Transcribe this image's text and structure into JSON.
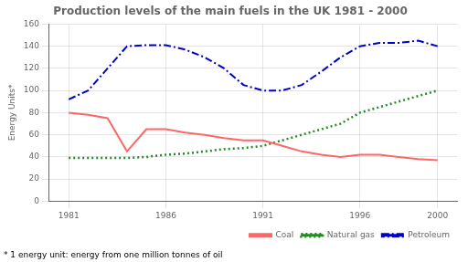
{
  "chart_data": {
    "type": "line",
    "title": "Production levels of the main fuels in the UK 1981 - 2000",
    "y_label": "Energy Units*",
    "annotations": [
      "* 1 energy unit: energy from one million tonnes of oil"
    ],
    "x": [
      1981,
      1982,
      1983,
      1984,
      1985,
      1986,
      1987,
      1988,
      1989,
      1990,
      1991,
      1992,
      1993,
      1994,
      1995,
      1996,
      1997,
      1998,
      1999,
      2000
    ],
    "series": [
      {
        "name": "Coal",
        "color": "#FF6666",
        "line_style": "solid",
        "values": [
          80,
          78,
          75,
          45,
          65,
          65,
          62,
          60,
          57,
          55,
          55,
          50,
          45,
          42,
          40,
          42,
          42,
          40,
          38,
          37
        ]
      },
      {
        "name": "Natural gas",
        "color": "#228B22",
        "line_style": "dotted",
        "values": [
          39,
          39,
          39,
          39,
          40,
          42,
          43,
          45,
          47,
          48,
          50,
          55,
          60,
          65,
          70,
          80,
          85,
          90,
          95,
          100
        ]
      },
      {
        "name": "Petroleum",
        "color": "#0000CD",
        "line_style": "dashdot",
        "values": [
          92,
          100,
          120,
          140,
          141,
          141,
          137,
          130,
          120,
          105,
          100,
          100,
          105,
          117,
          130,
          140,
          143,
          143,
          145,
          140
        ]
      }
    ],
    "xlim": [
      1980,
      2001
    ],
    "xticks": [
      1981,
      1986,
      1991,
      1996,
      2000
    ],
    "ylim": [
      0,
      160
    ],
    "yticks": [
      0,
      20,
      40,
      60,
      80,
      100,
      120,
      140,
      160
    ],
    "grid": true,
    "legend": "lower right"
  }
}
